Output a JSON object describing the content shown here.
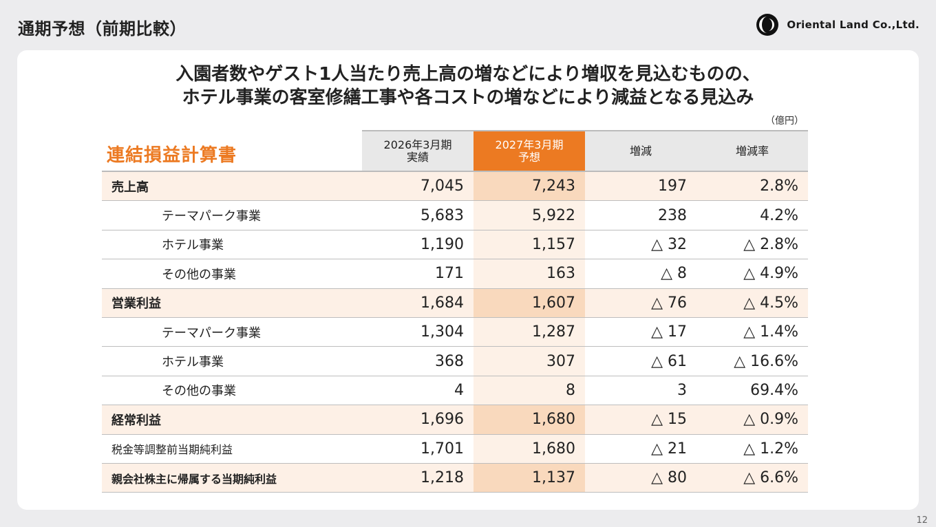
{
  "header": {
    "title": "通期予想（前期比較）",
    "company": "Oriental Land Co.,Ltd."
  },
  "headline": {
    "line1": "入園者数やゲスト1人当たり売上高の増などにより増収を見込むものの、",
    "line2": "ホテル事業の客室修繕工事や各コストの増などにより減益となる見込み"
  },
  "unit": "（億円）",
  "statement_title": "連結損益計算書",
  "columns": {
    "prev_line1": "2026年3月期",
    "prev_line2": "実績",
    "plan_line1": "2027年3月期",
    "plan_line2": "予想",
    "diff": "増減",
    "rate": "増減率"
  },
  "rows": [
    {
      "label": "売上高",
      "prev": "7,045",
      "plan": "7,243",
      "diff": "197",
      "rate": "2.8%"
    },
    {
      "label": "テーマパーク事業",
      "prev": "5,683",
      "plan": "5,922",
      "diff": "238",
      "rate": "4.2%"
    },
    {
      "label": "ホテル事業",
      "prev": "1,190",
      "plan": "1,157",
      "diff": "△ 32",
      "rate": "△ 2.8%"
    },
    {
      "label": "その他の事業",
      "prev": "171",
      "plan": "163",
      "diff": "△ 8",
      "rate": "△ 4.9%"
    },
    {
      "label": "営業利益",
      "prev": "1,684",
      "plan": "1,607",
      "diff": "△ 76",
      "rate": "△ 4.5%"
    },
    {
      "label": "テーマパーク事業",
      "prev": "1,304",
      "plan": "1,287",
      "diff": "△ 17",
      "rate": "△ 1.4%"
    },
    {
      "label": "ホテル事業",
      "prev": "368",
      "plan": "307",
      "diff": "△ 61",
      "rate": "△ 16.6%"
    },
    {
      "label": "その他の事業",
      "prev": "4",
      "plan": "8",
      "diff": "3",
      "rate": "69.4%"
    },
    {
      "label": "経常利益",
      "prev": "1,696",
      "plan": "1,680",
      "diff": "△ 15",
      "rate": "△ 0.9%"
    },
    {
      "label": "税金等調整前当期純利益",
      "prev": "1,701",
      "plan": "1,680",
      "diff": "△ 21",
      "rate": "△ 1.2%"
    },
    {
      "label": "親会社株主に帰属する当期純利益",
      "prev": "1,218",
      "plan": "1,137",
      "diff": "△ 80",
      "rate": "△ 6.6%"
    }
  ],
  "page_number": "12",
  "colors": {
    "accent": "#ec7a22",
    "highlight_row": "#fdf0e6",
    "highlight_plan": "#f9d9bd"
  }
}
